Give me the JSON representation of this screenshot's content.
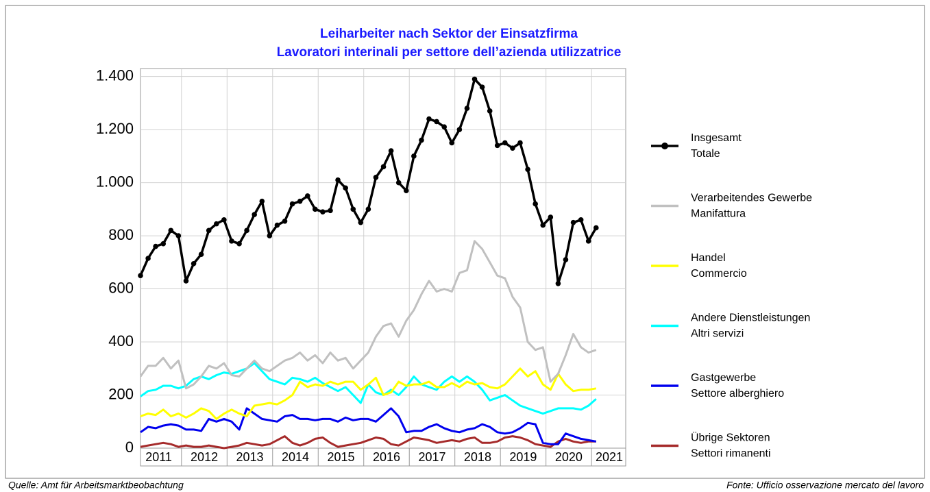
{
  "chart_data": {
    "type": "line",
    "title": "Leiharbeiter nach Sektor der Einsatzfirma",
    "subtitle": "Lavoratori interinali per settore dell’azienda utilizzatrice",
    "source_left": "Quelle: Amt für Arbeitsmarktbeobachtung",
    "source_right": "Fonte: Ufficio osservazione mercato del lavoro",
    "x": [
      2011.1,
      2011.267,
      2011.433,
      2011.6,
      2011.767,
      2011.933,
      2012.1,
      2012.267,
      2012.433,
      2012.6,
      2012.767,
      2012.933,
      2013.1,
      2013.267,
      2013.433,
      2013.6,
      2013.767,
      2013.933,
      2014.1,
      2014.267,
      2014.433,
      2014.6,
      2014.767,
      2014.933,
      2015.1,
      2015.267,
      2015.433,
      2015.6,
      2015.767,
      2015.933,
      2016.1,
      2016.267,
      2016.433,
      2016.6,
      2016.767,
      2016.933,
      2017.1,
      2017.267,
      2017.433,
      2017.6,
      2017.767,
      2017.933,
      2018.1,
      2018.267,
      2018.433,
      2018.6,
      2018.767,
      2018.933,
      2019.1,
      2019.267,
      2019.433,
      2019.6,
      2019.767,
      2019.933,
      2020.1,
      2020.267,
      2020.433,
      2020.6,
      2020.767,
      2020.933,
      2021.1
    ],
    "xlim": [
      2011.1,
      2021.75
    ],
    "xticks": [
      {
        "value": 2011.5,
        "label": "2011"
      },
      {
        "value": 2012.5,
        "label": "2012"
      },
      {
        "value": 2013.5,
        "label": "2013"
      },
      {
        "value": 2014.5,
        "label": "2014"
      },
      {
        "value": 2015.5,
        "label": "2015"
      },
      {
        "value": 2016.5,
        "label": "2016"
      },
      {
        "value": 2017.5,
        "label": "2017"
      },
      {
        "value": 2018.5,
        "label": "2018"
      },
      {
        "value": 2019.5,
        "label": "2019"
      },
      {
        "value": 2020.5,
        "label": "2020"
      },
      {
        "value": 2021.5,
        "label": "2021"
      }
    ],
    "ylim": [
      0,
      1430
    ],
    "yticks": [
      0,
      200,
      400,
      600,
      800,
      {
        "value": 1000,
        "label": "1.000"
      },
      {
        "value": 1200,
        "label": "1.200"
      },
      {
        "value": 1400,
        "label": "1.400"
      }
    ],
    "grid": true,
    "legend": "right",
    "series": [
      {
        "name": [
          "Insgesamt",
          "Totale"
        ],
        "color": "#000000",
        "markers": true,
        "values": [
          650,
          715,
          760,
          770,
          820,
          800,
          630,
          695,
          730,
          820,
          845,
          860,
          780,
          770,
          820,
          880,
          930,
          800,
          840,
          855,
          920,
          930,
          950,
          900,
          890,
          895,
          1010,
          980,
          900,
          850,
          900,
          1020,
          1060,
          1120,
          1000,
          970,
          1100,
          1160,
          1240,
          1230,
          1210,
          1150,
          1200,
          1280,
          1390,
          1360,
          1270,
          1140,
          1150,
          1130,
          1150,
          1050,
          920,
          840,
          870,
          620,
          710,
          850,
          860,
          780,
          830
        ]
      },
      {
        "name": [
          "Verarbeitendes Gewerbe",
          "Manifattura"
        ],
        "color": "#c0c0c0",
        "values": [
          270,
          310,
          310,
          340,
          300,
          330,
          225,
          240,
          270,
          310,
          300,
          320,
          275,
          270,
          300,
          330,
          300,
          290,
          310,
          330,
          340,
          360,
          330,
          350,
          320,
          360,
          330,
          340,
          300,
          330,
          360,
          420,
          460,
          470,
          420,
          480,
          520,
          580,
          630,
          590,
          600,
          590,
          660,
          670,
          780,
          750,
          700,
          650,
          640,
          570,
          530,
          400,
          370,
          380,
          250,
          280,
          350,
          430,
          380,
          360,
          370
        ]
      },
      {
        "name": [
          "Handel",
          "Commercio"
        ],
        "color": "#ffff00",
        "values": [
          120,
          130,
          125,
          145,
          120,
          130,
          115,
          130,
          150,
          140,
          110,
          130,
          145,
          130,
          120,
          160,
          165,
          170,
          165,
          180,
          200,
          250,
          230,
          240,
          235,
          250,
          240,
          250,
          250,
          220,
          240,
          265,
          200,
          210,
          250,
          235,
          240,
          240,
          250,
          230,
          230,
          245,
          230,
          250,
          240,
          245,
          230,
          225,
          240,
          270,
          300,
          270,
          290,
          240,
          220,
          280,
          240,
          215,
          220,
          220,
          225
        ]
      },
      {
        "name": [
          "Andere Dienstleistungen",
          "Altri servizi"
        ],
        "color": "#00ffff",
        "values": [
          195,
          215,
          220,
          235,
          235,
          225,
          235,
          260,
          270,
          260,
          275,
          285,
          280,
          290,
          300,
          320,
          290,
          260,
          250,
          240,
          265,
          260,
          250,
          265,
          245,
          230,
          215,
          230,
          200,
          170,
          240,
          210,
          200,
          220,
          200,
          230,
          270,
          240,
          230,
          220,
          250,
          270,
          250,
          270,
          250,
          220,
          180,
          190,
          200,
          180,
          160,
          150,
          140,
          130,
          140,
          150,
          150,
          150,
          145,
          160,
          185
        ]
      },
      {
        "name": [
          "Gastgewerbe",
          "Settore alberghiero"
        ],
        "color": "#0000ee",
        "values": [
          60,
          80,
          75,
          85,
          90,
          85,
          70,
          70,
          65,
          110,
          100,
          110,
          100,
          70,
          150,
          130,
          110,
          105,
          100,
          120,
          125,
          110,
          110,
          105,
          110,
          110,
          100,
          115,
          105,
          110,
          110,
          100,
          125,
          150,
          120,
          60,
          65,
          65,
          80,
          90,
          75,
          65,
          60,
          70,
          75,
          90,
          80,
          60,
          55,
          60,
          75,
          95,
          90,
          20,
          15,
          15,
          55,
          45,
          35,
          30,
          25
        ]
      },
      {
        "name": [
          "Übrige Sektoren",
          "Settori rimanenti"
        ],
        "color": "#a52a2a",
        "values": [
          5,
          10,
          15,
          20,
          15,
          5,
          10,
          5,
          5,
          10,
          5,
          0,
          5,
          10,
          20,
          15,
          10,
          15,
          30,
          45,
          20,
          10,
          20,
          35,
          40,
          20,
          5,
          10,
          15,
          20,
          30,
          40,
          35,
          15,
          10,
          25,
          40,
          35,
          30,
          20,
          25,
          30,
          25,
          35,
          40,
          20,
          20,
          25,
          40,
          45,
          40,
          30,
          15,
          10,
          5,
          25,
          35,
          25,
          20,
          25,
          25
        ]
      }
    ]
  }
}
